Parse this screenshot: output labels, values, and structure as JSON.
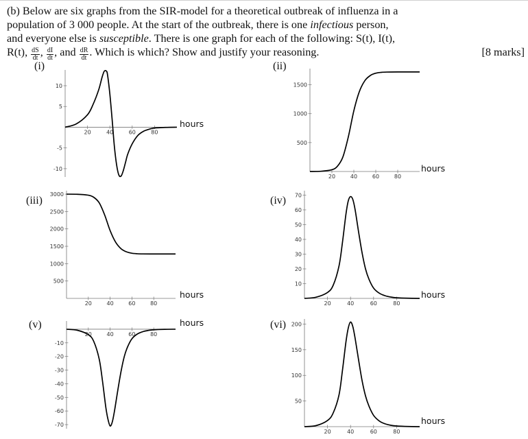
{
  "question": {
    "line1_a": "(b) Below are six graphs from the SIR-model for a theoretical outbreak of influenza in a",
    "line2_a": "population of 3 000 people. At the start of the outbreak, there is one ",
    "line2_em": "infectious",
    "line2_b": " person,",
    "line3_a": "and everyone else is ",
    "line3_em": "susceptible",
    "line3_b": ". There is one graph for each of the following: S(t), I(t),",
    "line4_a": "R(t), ",
    "frac1_num": "dS",
    "frac1_den": "dt",
    "sep1": ", ",
    "frac2_num": "dI",
    "frac2_den": "dt",
    "sep2": ", and ",
    "frac3_num": "dR",
    "frac3_den": "dt",
    "line4_b": ". Which is which? Show and justify your reasoning.",
    "marks": "[8 marks]"
  },
  "graph_labels": [
    "(i)",
    "(ii)",
    "(iii)",
    "(iv)",
    "(v)",
    "(vi)"
  ],
  "chart_data": [
    {
      "type": "line",
      "label": "(i)",
      "xlabel": "hours",
      "xticks": [
        20,
        40,
        60,
        80
      ],
      "yticks": [
        10,
        5,
        -5,
        -10
      ],
      "xlim": [
        0,
        100
      ],
      "ylim": [
        -12,
        13.8
      ],
      "x": [
        0,
        10,
        20,
        25,
        30,
        33,
        35,
        37,
        38,
        40,
        42,
        44,
        46,
        48,
        50,
        52,
        54,
        56,
        60,
        65,
        70,
        75,
        80,
        90,
        100
      ],
      "y": [
        0,
        0.8,
        3,
        5.5,
        9,
        12,
        13.5,
        13.5,
        12.5,
        8,
        2,
        -4.5,
        -9,
        -11.5,
        -11.8,
        -10.5,
        -8.5,
        -6.5,
        -4,
        -2,
        -1,
        -0.5,
        -0.2,
        -0.05,
        0
      ]
    },
    {
      "type": "line",
      "label": "(ii)",
      "xlabel": "hours",
      "xticks": [
        20,
        40,
        60,
        80
      ],
      "yticks": [
        1500,
        1000,
        500
      ],
      "xlim": [
        0,
        100
      ],
      "ylim": [
        0,
        1780
      ],
      "x": [
        0,
        10,
        20,
        25,
        30,
        35,
        40,
        45,
        50,
        55,
        60,
        65,
        70,
        80,
        90,
        100
      ],
      "y": [
        0,
        4,
        30,
        90,
        250,
        600,
        1050,
        1380,
        1570,
        1660,
        1700,
        1715,
        1720,
        1722,
        1722,
        1722
      ]
    },
    {
      "type": "line",
      "label": "(iii)",
      "xlabel": "hours",
      "xticks": [
        20,
        40,
        60,
        80
      ],
      "yticks": [
        3000,
        2500,
        2000,
        1500,
        1000,
        500
      ],
      "xlim": [
        0,
        100
      ],
      "ylim": [
        0,
        3100
      ],
      "x": [
        0,
        10,
        20,
        25,
        30,
        35,
        40,
        45,
        50,
        55,
        60,
        65,
        70,
        80,
        90,
        100
      ],
      "y": [
        3000,
        2996,
        2970,
        2910,
        2750,
        2400,
        1950,
        1620,
        1430,
        1340,
        1300,
        1285,
        1280,
        1278,
        1278,
        1278
      ]
    },
    {
      "type": "line",
      "label": "(iv)",
      "xlabel": "hours",
      "xticks": [
        20,
        40,
        60,
        80
      ],
      "yticks": [
        70,
        60,
        50,
        40,
        30,
        20,
        10
      ],
      "xlim": [
        0,
        100
      ],
      "ylim": [
        0,
        73
      ],
      "x": [
        0,
        10,
        20,
        25,
        30,
        33,
        36,
        38,
        40,
        42,
        44,
        47,
        50,
        53,
        56,
        60,
        65,
        70,
        75,
        80,
        90,
        100
      ],
      "y": [
        0,
        0.8,
        4,
        9,
        22,
        38,
        57,
        66,
        69,
        67,
        60,
        45,
        31,
        20,
        13,
        7,
        3.5,
        1.8,
        0.9,
        0.4,
        0.1,
        0
      ]
    },
    {
      "type": "line",
      "label": "(v)",
      "xlabel": "hours",
      "xticks": [
        20,
        40,
        60,
        80
      ],
      "yticks": [
        -10,
        -20,
        -30,
        -40,
        -50,
        -60,
        -70
      ],
      "xlim": [
        0,
        100
      ],
      "ylim": [
        -73,
        6
      ],
      "x": [
        0,
        10,
        20,
        25,
        30,
        33,
        36,
        38,
        40,
        42,
        44,
        47,
        50,
        53,
        56,
        60,
        65,
        70,
        75,
        80,
        90,
        100
      ],
      "y": [
        0,
        -0.8,
        -4,
        -9,
        -22,
        -38,
        -57,
        -66,
        -71,
        -68,
        -60,
        -45,
        -31,
        -20,
        -13,
        -7,
        -3.5,
        -1.8,
        -0.9,
        -0.4,
        -0.1,
        0
      ]
    },
    {
      "type": "line",
      "label": "(vi)",
      "xlabel": "hours",
      "xticks": [
        20,
        40,
        60,
        80
      ],
      "yticks": [
        200,
        150,
        100,
        50
      ],
      "xlim": [
        0,
        100
      ],
      "ylim": [
        0,
        210
      ],
      "x": [
        0,
        10,
        20,
        25,
        30,
        33,
        36,
        38,
        40,
        42,
        44,
        47,
        50,
        53,
        56,
        60,
        65,
        70,
        75,
        80,
        90,
        100
      ],
      "y": [
        0,
        2,
        12,
        27,
        62,
        110,
        165,
        192,
        204,
        195,
        172,
        130,
        90,
        60,
        40,
        22,
        11,
        5.5,
        2.7,
        1.3,
        0.3,
        0
      ]
    }
  ]
}
